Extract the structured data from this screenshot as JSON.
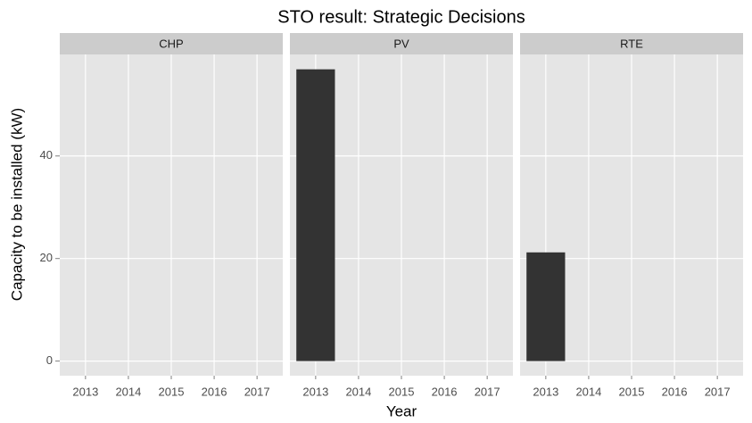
{
  "chart_data": {
    "type": "bar",
    "title": "STO result: Strategic Decisions",
    "x_label": "Year",
    "y_label": "Capacity to be installed (kW)",
    "ylim": [
      -2.85,
      59.8
    ],
    "yticks": [
      0,
      20,
      40
    ],
    "color": "#333333",
    "grid": true,
    "facets": [
      {
        "name": "CHP",
        "categories": [
          "2013",
          "2014",
          "2015",
          "2016",
          "2017"
        ],
        "values": [
          0,
          0,
          0,
          0,
          0
        ]
      },
      {
        "name": "PV",
        "categories": [
          "2013",
          "2014",
          "2015",
          "2016",
          "2017"
        ],
        "values": [
          56.9,
          0,
          0,
          0,
          0
        ]
      },
      {
        "name": "RTE",
        "categories": [
          "2013",
          "2014",
          "2015",
          "2016",
          "2017"
        ],
        "values": [
          21.2,
          0,
          0,
          0,
          0
        ]
      }
    ]
  }
}
